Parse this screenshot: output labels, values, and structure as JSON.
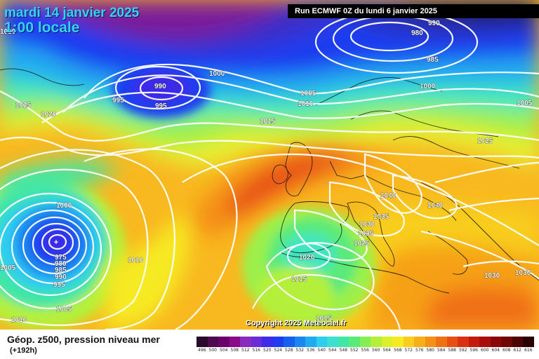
{
  "header": {
    "date_line": "mardi 14 janvier 2025",
    "time_line": "1:00 locale",
    "run_line": "Run ECMWF 0Z du lundi 6 janvier 2025"
  },
  "copyright": "Copyright 2025 Meteociel.fr",
  "legend": {
    "title": "Géop. z500, pression niveau mer",
    "forecast_hour": "(+192h)",
    "scale": [
      {
        "label": "496",
        "color": "#2a0a2a"
      },
      {
        "label": "500",
        "color": "#4d0a4d"
      },
      {
        "label": "504",
        "color": "#6b006b"
      },
      {
        "label": "508",
        "color": "#8a0a8a"
      },
      {
        "label": "512",
        "color": "#8b2bbd"
      },
      {
        "label": "516",
        "color": "#6a2bd8"
      },
      {
        "label": "520",
        "color": "#3d2be8"
      },
      {
        "label": "524",
        "color": "#1f3cf0"
      },
      {
        "label": "528",
        "color": "#1660f0"
      },
      {
        "label": "532",
        "color": "#1a86f0"
      },
      {
        "label": "536",
        "color": "#22aaf0"
      },
      {
        "label": "540",
        "color": "#2fcdf0"
      },
      {
        "label": "544",
        "color": "#3de0d0"
      },
      {
        "label": "548",
        "color": "#3fe6a6"
      },
      {
        "label": "552",
        "color": "#5aea7a"
      },
      {
        "label": "556",
        "color": "#86ee55"
      },
      {
        "label": "560",
        "color": "#b4f03a"
      },
      {
        "label": "564",
        "color": "#dcf02a"
      },
      {
        "label": "568",
        "color": "#f6ea22"
      },
      {
        "label": "572",
        "color": "#f8cd1e"
      },
      {
        "label": "576",
        "color": "#f8ae18"
      },
      {
        "label": "580",
        "color": "#f59016"
      },
      {
        "label": "584",
        "color": "#f07014"
      },
      {
        "label": "588",
        "color": "#e85012"
      },
      {
        "label": "592",
        "color": "#da3210"
      },
      {
        "label": "596",
        "color": "#c41a0e"
      },
      {
        "label": "600",
        "color": "#a80e0c"
      },
      {
        "label": "604",
        "color": "#8a0808"
      },
      {
        "label": "608",
        "color": "#700606"
      },
      {
        "label": "612",
        "color": "#4e0404"
      },
      {
        "label": "616",
        "color": "#2a0202"
      }
    ]
  },
  "map": {
    "isobar_labels": [
      {
        "text": "980"
      },
      {
        "text": "985"
      },
      {
        "text": "990"
      },
      {
        "text": "990"
      },
      {
        "text": "995"
      },
      {
        "text": "995"
      },
      {
        "text": "1000"
      },
      {
        "text": "1000"
      },
      {
        "text": "1005"
      },
      {
        "text": "1010"
      },
      {
        "text": "1015"
      },
      {
        "text": "1025"
      },
      {
        "text": "1020"
      },
      {
        "text": "1025"
      },
      {
        "text": "1040"
      },
      {
        "text": "1040"
      },
      {
        "text": "1035"
      },
      {
        "text": "1030"
      },
      {
        "text": "1035"
      },
      {
        "text": "1025"
      },
      {
        "text": "1020"
      },
      {
        "text": "1015"
      },
      {
        "text": "1015"
      },
      {
        "text": "1000"
      },
      {
        "text": "975"
      },
      {
        "text": "980"
      },
      {
        "text": "985"
      },
      {
        "text": "990"
      },
      {
        "text": "995"
      },
      {
        "text": "1010"
      },
      {
        "text": "1005"
      },
      {
        "text": "1010"
      },
      {
        "text": "1030"
      },
      {
        "text": "1030"
      },
      {
        "text": "1005"
      },
      {
        "text": "1005"
      },
      {
        "text": "1020"
      },
      {
        "text": "1025"
      }
    ]
  }
}
